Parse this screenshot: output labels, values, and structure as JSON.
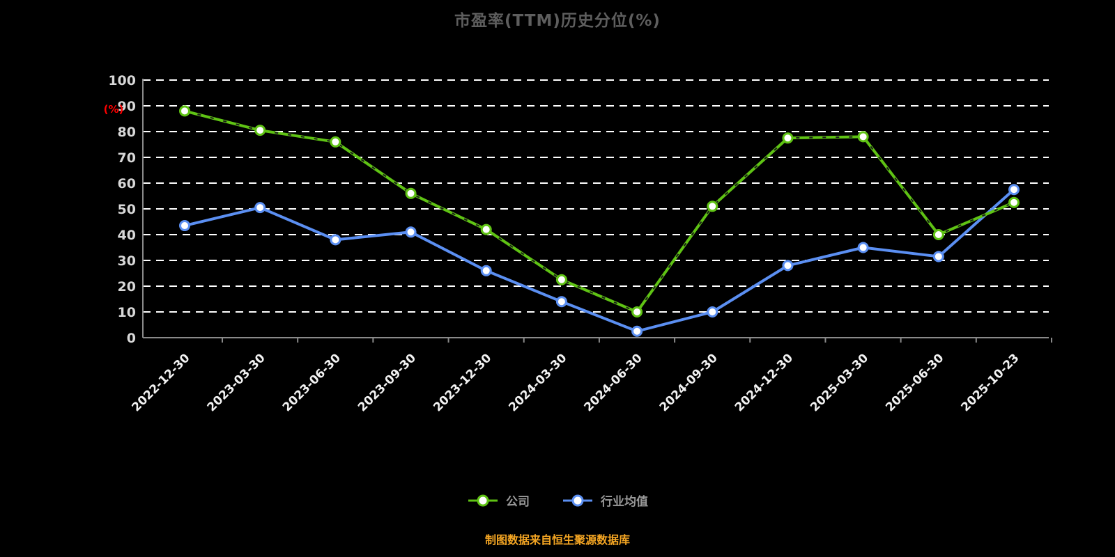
{
  "title": {
    "text": "市盈率(TTM)历史分位(%)",
    "color": "#5e5e5e"
  },
  "y_axis": {
    "unit_label": "(%)",
    "unit_color": "#ff0000",
    "tick_labels": [
      "0",
      "10",
      "20",
      "30",
      "40",
      "50",
      "60",
      "70",
      "80",
      "90",
      "100"
    ]
  },
  "legend": {
    "items": [
      {
        "label": "公司",
        "color": "#5fc314"
      },
      {
        "label": "行业均值",
        "color": "#5b8ff2"
      }
    ]
  },
  "source_note": {
    "text": "制图数据来自恒生聚源数据库",
    "color": "#f5a623"
  },
  "chart_data": {
    "type": "line",
    "x": [
      "2022-12-30",
      "2023-03-30",
      "2023-06-30",
      "2023-09-30",
      "2023-12-30",
      "2024-03-30",
      "2024-06-30",
      "2024-09-30",
      "2024-12-30",
      "2025-03-30",
      "2025-06-30",
      "2025-10-23"
    ],
    "series": [
      {
        "name": "公司",
        "color": "#5fc314",
        "values": [
          88,
          80.5,
          76,
          56,
          42,
          22.5,
          10,
          51,
          77.5,
          78,
          40,
          52.5
        ]
      },
      {
        "name": "行业均值",
        "color": "#5b8ff2",
        "values": [
          43.5,
          50.5,
          38,
          41,
          26,
          14,
          2.5,
          10,
          28,
          35,
          31.5,
          57.5
        ]
      }
    ],
    "ylim": [
      0,
      100
    ],
    "ytick_step": 10,
    "grid": "horizontal-dashed-white",
    "legend_position": "bottom",
    "background": "#000000"
  }
}
